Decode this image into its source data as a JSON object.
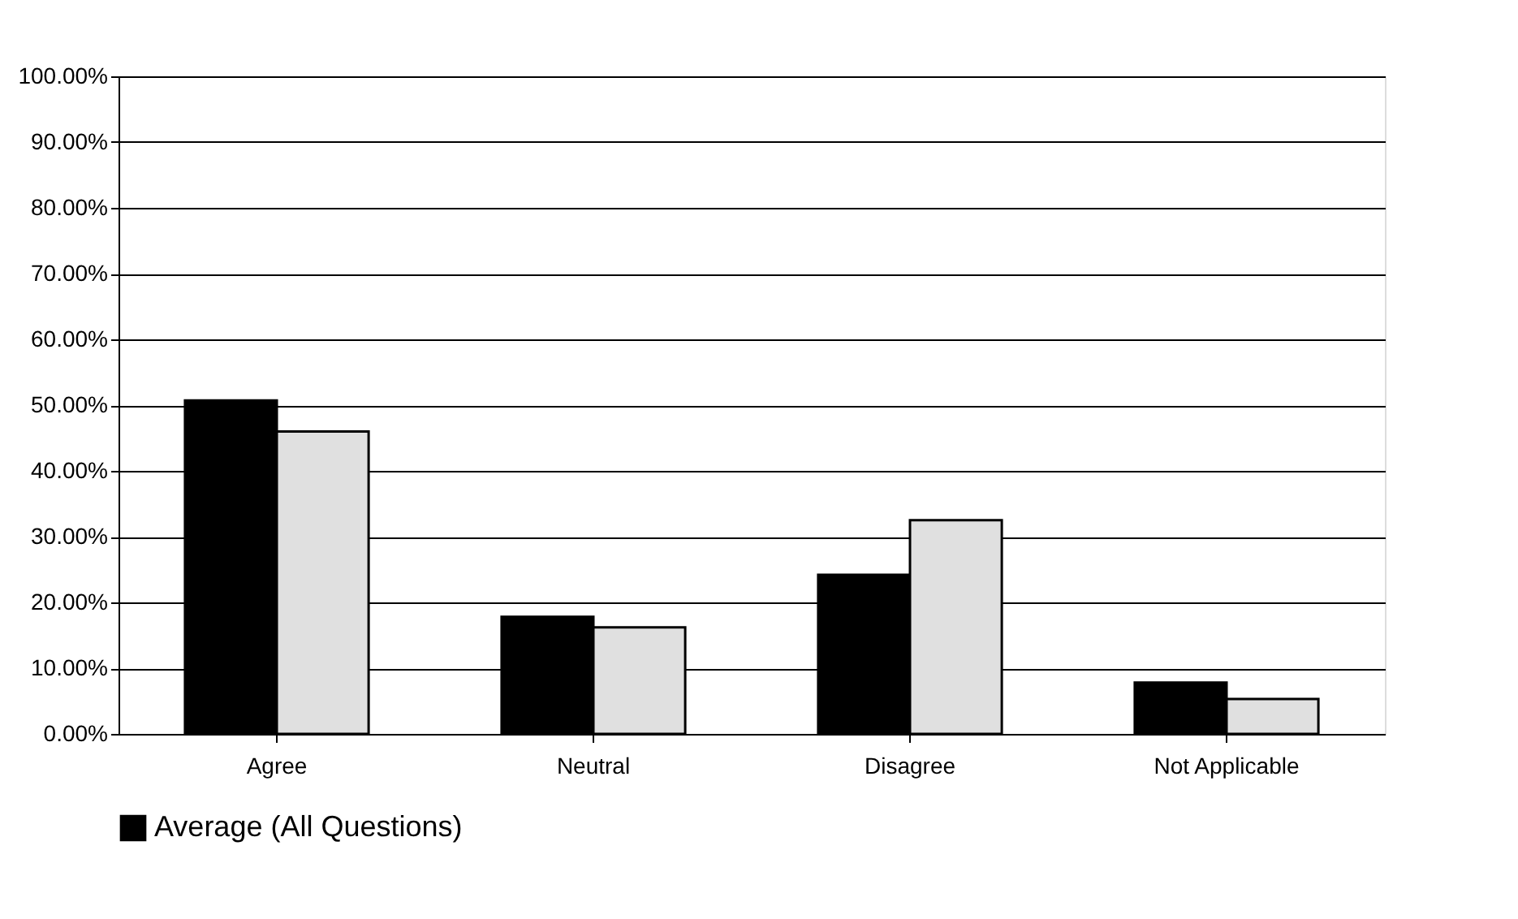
{
  "chart_data": {
    "type": "bar",
    "categories": [
      "Agree",
      "Neutral",
      "Disagree",
      "Not Applicable"
    ],
    "series": [
      {
        "name": "Average (All Questions)",
        "color": "#000000",
        "values": [
          50.7,
          17.8,
          24.2,
          7.8
        ]
      },
      {
        "color": "#e0e0e0",
        "values": [
          46.0,
          16.2,
          32.5,
          5.3
        ]
      }
    ],
    "ylim": [
      0,
      100
    ],
    "yticks": [
      {
        "value": 0,
        "label": "0.00%"
      },
      {
        "value": 10,
        "label": "10.00%"
      },
      {
        "value": 20,
        "label": "20.00%"
      },
      {
        "value": 30,
        "label": "30.00%"
      },
      {
        "value": 40,
        "label": "40.00%"
      },
      {
        "value": 50,
        "label": "50.00%"
      },
      {
        "value": 60,
        "label": "60.00%"
      },
      {
        "value": 70,
        "label": "70.00%"
      },
      {
        "value": 80,
        "label": "80.00%"
      },
      {
        "value": 90,
        "label": "90.00%"
      },
      {
        "value": 100,
        "label": "100.00%"
      }
    ],
    "grid": "y",
    "legend": "bottom"
  }
}
